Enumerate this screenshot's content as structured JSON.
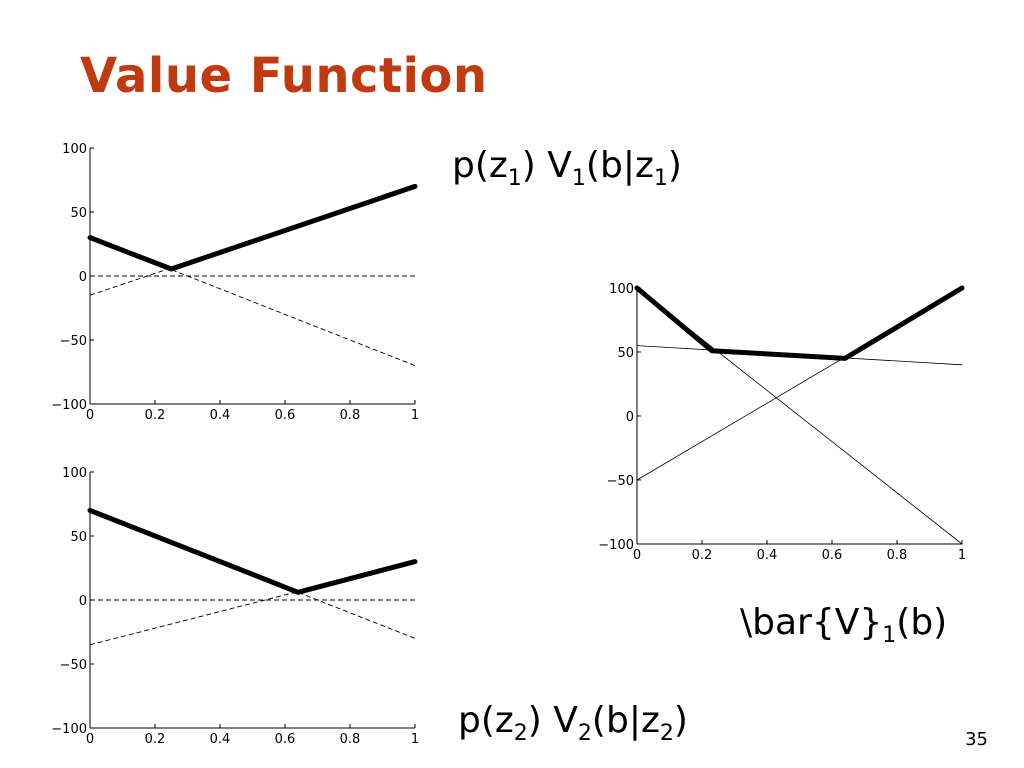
{
  "slide": {
    "title": "Value Function",
    "page_number": "35"
  },
  "equations": {
    "eq1": {
      "p": "p(z",
      "s1": "1",
      "mid": ") V",
      "s2": "1",
      "rest": "(b|z",
      "s3": "1",
      "end": ")"
    },
    "eq2": {
      "p": "p(z",
      "s1": "2",
      "mid": ") V",
      "s2": "2",
      "rest": "(b|z",
      "s3": "2",
      "end": ")"
    },
    "eq3": {
      "main": "\\bar{V}",
      "sub": "1",
      "end": "(b)"
    }
  },
  "chart_data": [
    {
      "id": "top-left",
      "type": "line",
      "xlim": [
        0,
        1
      ],
      "ylim": [
        -100,
        100
      ],
      "xticks": [
        0,
        0.2,
        0.4,
        0.6,
        0.8,
        1
      ],
      "xtick_labels": [
        "0",
        "0.2",
        "0.4",
        "0.6",
        "0.8",
        "1"
      ],
      "yticks": [
        100,
        50,
        0,
        -50,
        -100
      ],
      "ytick_labels": [
        "100",
        "50",
        "0",
        "−50",
        "−100"
      ],
      "series": [
        {
          "style": "dashed",
          "x": [
            0,
            1
          ],
          "y": [
            30,
            -70
          ]
        },
        {
          "style": "dashed",
          "x": [
            0,
            1
          ],
          "y": [
            -15,
            70
          ]
        },
        {
          "style": "dashed",
          "x": [
            0,
            1
          ],
          "y": [
            0,
            0
          ]
        },
        {
          "style": "bold",
          "x": [
            0,
            0.25,
            1
          ],
          "y": [
            30,
            5.5,
            70
          ]
        }
      ]
    },
    {
      "id": "bottom-left",
      "type": "line",
      "xlim": [
        0,
        1
      ],
      "ylim": [
        -100,
        100
      ],
      "xticks": [
        0,
        0.2,
        0.4,
        0.6,
        0.8,
        1
      ],
      "xtick_labels": [
        "0",
        "0.2",
        "0.4",
        "0.6",
        "0.8",
        "1"
      ],
      "yticks": [
        100,
        50,
        0,
        -50,
        -100
      ],
      "ytick_labels": [
        "100",
        "50",
        "0",
        "−50",
        "−100"
      ],
      "series": [
        {
          "style": "dashed",
          "x": [
            0,
            1
          ],
          "y": [
            70,
            -30
          ]
        },
        {
          "style": "dashed",
          "x": [
            0,
            1
          ],
          "y": [
            -35,
            30
          ]
        },
        {
          "style": "dashed",
          "x": [
            0,
            1
          ],
          "y": [
            0,
            0
          ]
        },
        {
          "style": "bold",
          "x": [
            0,
            0.64,
            1
          ],
          "y": [
            70,
            6,
            30
          ]
        }
      ]
    },
    {
      "id": "right",
      "type": "line",
      "xlim": [
        0,
        1
      ],
      "ylim": [
        -100,
        100
      ],
      "xticks": [
        0,
        0.2,
        0.4,
        0.6,
        0.8,
        1
      ],
      "xtick_labels": [
        "0",
        "0.2",
        "0.4",
        "0.6",
        "0.8",
        "1"
      ],
      "yticks": [
        100,
        50,
        0,
        -50,
        -100
      ],
      "ytick_labels": [
        "100",
        "50",
        "0",
        "−50",
        "−100"
      ],
      "series": [
        {
          "style": "thin",
          "x": [
            0,
            1
          ],
          "y": [
            100,
            -100
          ]
        },
        {
          "style": "thin",
          "x": [
            0,
            1
          ],
          "y": [
            55,
            40
          ]
        },
        {
          "style": "thin",
          "x": [
            0,
            1
          ],
          "y": [
            -50,
            100
          ]
        },
        {
          "style": "bold",
          "x": [
            0,
            0.23,
            0.64,
            1
          ],
          "y": [
            100,
            51,
            45,
            100
          ]
        }
      ]
    }
  ]
}
